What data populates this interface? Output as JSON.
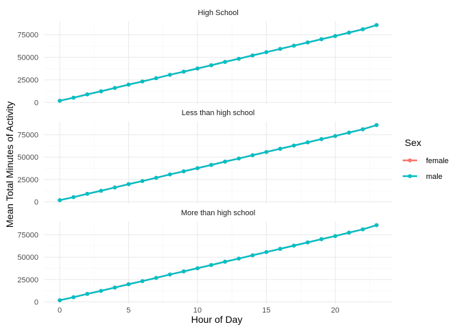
{
  "chart_data": {
    "type": "line",
    "xlabel": "Hour of Day",
    "ylabel": "Mean Total Minutes of Activity",
    "xlim": [
      -1.15,
      24.15
    ],
    "ylim": [
      -2000,
      90000
    ],
    "x_ticks": [
      0,
      5,
      10,
      15,
      20
    ],
    "y_ticks": [
      0,
      25000,
      50000,
      75000
    ],
    "grid": true,
    "legend": {
      "title": "Sex",
      "position": "right",
      "entries": [
        "female",
        "male"
      ]
    },
    "colors": {
      "female": "#F8766D",
      "male": "#00BFC4"
    },
    "facets": [
      {
        "label": "High School",
        "series": [
          {
            "name": "female",
            "x": [
              0,
              1,
              2,
              3,
              4,
              5,
              6,
              7,
              8,
              9,
              10,
              11,
              12,
              13,
              14,
              15,
              16,
              17,
              18,
              19,
              20,
              21,
              22,
              23
            ],
            "y": [
              1800,
              5200,
              8900,
              12300,
              16000,
              19700,
              23200,
              26800,
              30600,
              34100,
              37600,
              41200,
              44900,
              48400,
              52100,
              55700,
              59300,
              62900,
              66500,
              70100,
              73600,
              77400,
              81100,
              85800
            ]
          },
          {
            "name": "male",
            "x": [
              0,
              1,
              2,
              3,
              4,
              5,
              6,
              7,
              8,
              9,
              10,
              11,
              12,
              13,
              14,
              15,
              16,
              17,
              18,
              19,
              20,
              21,
              22,
              23
            ],
            "y": [
              1800,
              5200,
              8900,
              12300,
              16000,
              19700,
              23200,
              26800,
              30600,
              34100,
              37600,
              41200,
              44900,
              48400,
              52100,
              55700,
              59300,
              62900,
              66500,
              70100,
              73600,
              77400,
              81100,
              85800
            ]
          }
        ]
      },
      {
        "label": "Less than high school",
        "series": [
          {
            "name": "female",
            "x": [
              0,
              1,
              2,
              3,
              4,
              5,
              6,
              7,
              8,
              9,
              10,
              11,
              12,
              13,
              14,
              15,
              16,
              17,
              18,
              19,
              20,
              21,
              22,
              23
            ],
            "y": [
              1800,
              5200,
              8900,
              12300,
              16000,
              19700,
              23200,
              26800,
              30600,
              34100,
              37600,
              41200,
              44900,
              48400,
              52100,
              55700,
              59300,
              62900,
              66500,
              70100,
              73600,
              77400,
              81100,
              85800
            ]
          },
          {
            "name": "male",
            "x": [
              0,
              1,
              2,
              3,
              4,
              5,
              6,
              7,
              8,
              9,
              10,
              11,
              12,
              13,
              14,
              15,
              16,
              17,
              18,
              19,
              20,
              21,
              22,
              23
            ],
            "y": [
              1800,
              5200,
              8900,
              12300,
              16000,
              19700,
              23200,
              26800,
              30600,
              34100,
              37600,
              41200,
              44900,
              48400,
              52100,
              55700,
              59300,
              62900,
              66500,
              70100,
              73600,
              77400,
              81100,
              85800
            ]
          }
        ]
      },
      {
        "label": "More than high school",
        "series": [
          {
            "name": "female",
            "x": [
              0,
              1,
              2,
              3,
              4,
              5,
              6,
              7,
              8,
              9,
              10,
              11,
              12,
              13,
              14,
              15,
              16,
              17,
              18,
              19,
              20,
              21,
              22,
              23
            ],
            "y": [
              1800,
              5200,
              8900,
              12300,
              16000,
              19700,
              23200,
              26800,
              30600,
              34100,
              37600,
              41200,
              44900,
              48400,
              52100,
              55700,
              59300,
              62900,
              66500,
              70100,
              73600,
              77400,
              81100,
              85800
            ]
          },
          {
            "name": "male",
            "x": [
              0,
              1,
              2,
              3,
              4,
              5,
              6,
              7,
              8,
              9,
              10,
              11,
              12,
              13,
              14,
              15,
              16,
              17,
              18,
              19,
              20,
              21,
              22,
              23
            ],
            "y": [
              1800,
              5200,
              8900,
              12300,
              16000,
              19700,
              23200,
              26800,
              30600,
              34100,
              37600,
              41200,
              44900,
              48400,
              52100,
              55700,
              59300,
              62900,
              66500,
              70100,
              73600,
              77400,
              81100,
              85800
            ]
          }
        ]
      }
    ]
  }
}
